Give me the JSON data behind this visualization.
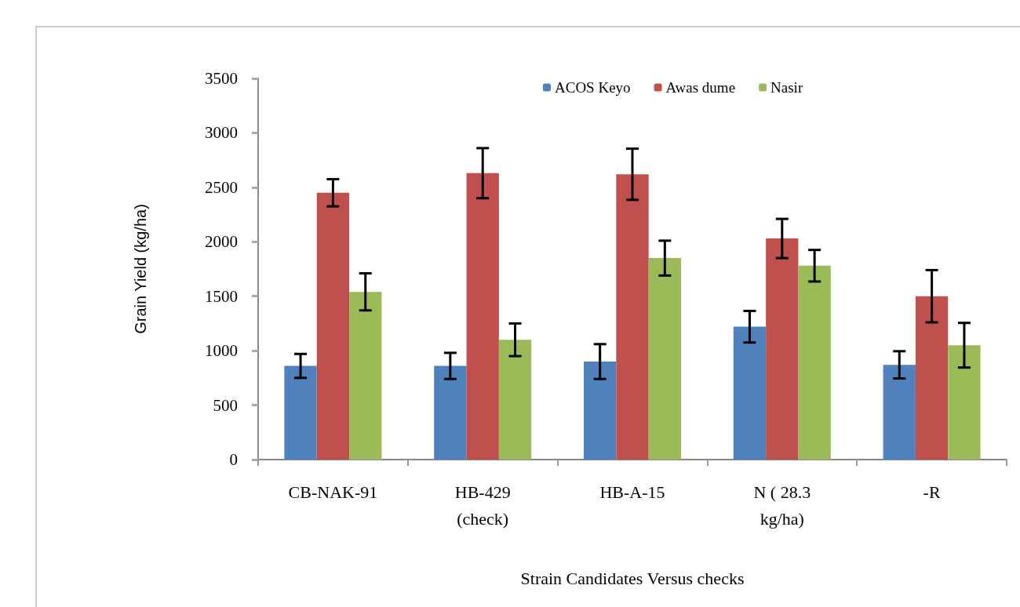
{
  "chart_data": {
    "type": "bar",
    "xlabel": "Strain Candidates Versus checks",
    "ylabel": "Grain Yield (kg/ha)",
    "categories": [
      "CB-NAK-91",
      "HB-429\n(check)",
      "HB-A-15",
      "N ( 28.3\nkg/ha)",
      "-R"
    ],
    "series": [
      {
        "name": "ACOS Keyo",
        "color": "#4f81bd",
        "values": [
          860,
          860,
          900,
          1220,
          870
        ],
        "errors": [
          110,
          120,
          160,
          145,
          125
        ]
      },
      {
        "name": "Awas dume",
        "color": "#c0504d",
        "values": [
          2450,
          2630,
          2620,
          2030,
          1500
        ],
        "errors": [
          125,
          230,
          235,
          180,
          240
        ]
      },
      {
        "name": "Nasir",
        "color": "#9bbb59",
        "values": [
          1540,
          1100,
          1850,
          1780,
          1050
        ],
        "errors": [
          170,
          150,
          160,
          145,
          205
        ]
      }
    ],
    "ylim": [
      0,
      3500
    ],
    "yticks": [
      0,
      500,
      1000,
      1500,
      2000,
      2500,
      3000,
      3500
    ],
    "grid": false,
    "legend": "top"
  }
}
